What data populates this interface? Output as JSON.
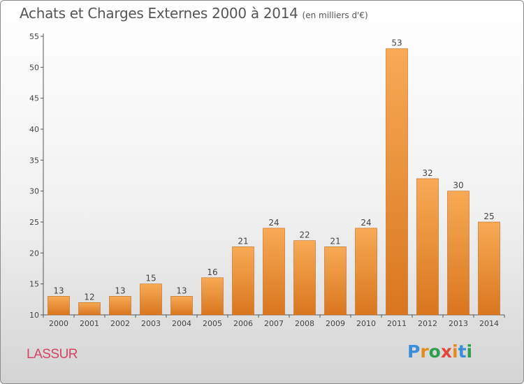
{
  "title": {
    "main": "Achats et Charges Externes 2000 à 2014",
    "unit": "(en milliers d'€)"
  },
  "commune": "LASSUR",
  "brand": {
    "letters": [
      "P",
      "r",
      "o",
      "x",
      "i",
      "t",
      "i"
    ],
    "colors": [
      "#3a8ed8",
      "#e58a1f",
      "#2e9f4e",
      "#e2473b",
      "#e58a1f",
      "#3a8ed8",
      "#2e9f4e"
    ]
  },
  "colors": {
    "bar_light": "#f8aa55",
    "bar_dark": "#d9761f",
    "axis": "#555555",
    "grid": "#bdbdbd"
  },
  "chart_data": {
    "type": "bar",
    "title": "Achats et Charges Externes 2000 à 2014",
    "subtitle": "(en milliers d'€)",
    "xlabel": "",
    "ylabel": "",
    "categories": [
      "2000",
      "2001",
      "2002",
      "2003",
      "2004",
      "2005",
      "2006",
      "2007",
      "2008",
      "2009",
      "2010",
      "2011",
      "2012",
      "2013",
      "2014"
    ],
    "values": [
      13,
      12,
      13,
      15,
      13,
      16,
      21,
      24,
      22,
      21,
      24,
      53,
      32,
      30,
      25
    ],
    "ylim": [
      10,
      55
    ],
    "yticks": [
      10,
      15,
      20,
      25,
      30,
      35,
      40,
      45,
      50,
      55
    ],
    "grid": false,
    "legend": "none"
  }
}
